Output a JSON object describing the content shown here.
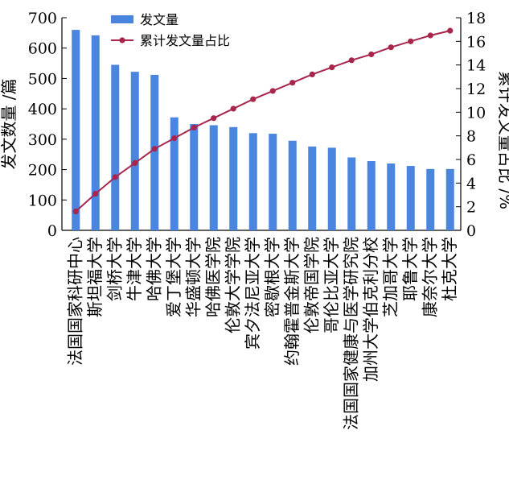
{
  "chart_data": {
    "type": "bar",
    "categories": [
      "法国国家科研中心",
      "斯坦福大学",
      "剑桥大学",
      "牛津大学",
      "哈佛大学",
      "爱丁堡大学",
      "华盛顿大学",
      "哈佛医学院",
      "伦敦大学学院",
      "宾夕法尼亚大学",
      "密歇根大学",
      "约翰霍普金斯大学",
      "伦敦帝国学院",
      "哥伦比亚大学",
      "法国国家健康与医学研究院",
      "加州大学伯克利分校",
      "芝加哥大学",
      "耶鲁大学",
      "康奈尔大学",
      "杜克大学"
    ],
    "series": [
      {
        "name": "发文量",
        "type": "bar",
        "axis": "left",
        "color": "#4a86e0",
        "values": [
          660,
          642,
          545,
          522,
          512,
          372,
          350,
          346,
          340,
          320,
          318,
          295,
          276,
          272,
          240,
          228,
          220,
          212,
          202,
          202
        ]
      },
      {
        "name": "累计发文量占比",
        "type": "line",
        "axis": "right",
        "color": "#a8254c",
        "values": [
          1.6,
          3.1,
          4.5,
          5.7,
          6.9,
          7.8,
          8.7,
          9.5,
          10.3,
          11.1,
          11.8,
          12.5,
          13.2,
          13.8,
          14.4,
          14.9,
          15.5,
          16.0,
          16.5,
          16.9
        ]
      }
    ],
    "ylabel": "发文数量 /篇",
    "ylabel_right": "累计发文量占比 /%",
    "ylim": [
      0,
      700
    ],
    "ylim_right": [
      0,
      18
    ],
    "yticks": [
      "0",
      "100",
      "200",
      "300",
      "400",
      "500",
      "600",
      "700"
    ],
    "yticks_right": [
      "0",
      "2",
      "4",
      "6",
      "8",
      "10",
      "12",
      "14",
      "16",
      "18"
    ],
    "legend_position": "top-left",
    "grid": false
  }
}
